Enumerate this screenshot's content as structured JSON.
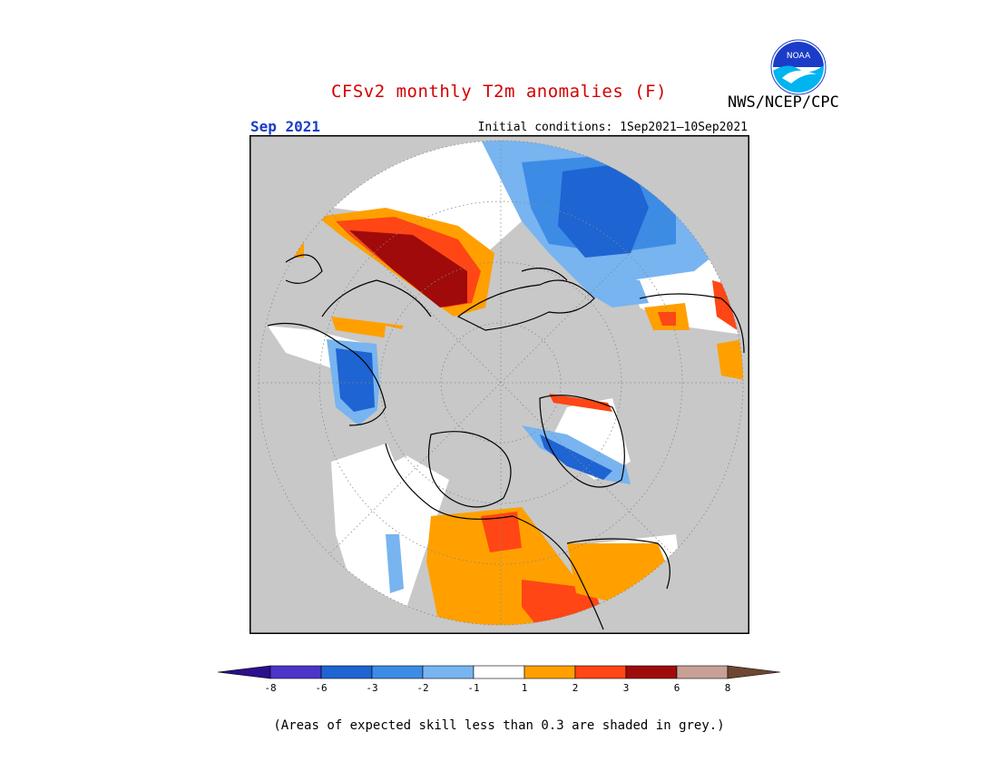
{
  "header": {
    "title": "CFSv2 monthly T2m anomalies (F)",
    "agency": "NWS/NCEP/CPC",
    "logo_text": "NOAA",
    "month": "Sep 2021",
    "initial_conditions": "Initial conditions: 1Sep2021—10Sep2021"
  },
  "map": {
    "projection": "polar-stereographic-north",
    "background_color": "#c8c8c8"
  },
  "legend": {
    "colors": [
      "#2b0f8c",
      "#4a35c8",
      "#1e64d2",
      "#3c8ce6",
      "#78b4f0",
      "#ffffff",
      "#ffa000",
      "#ff4614",
      "#a00a0a",
      "#c8a096",
      "#6e4632"
    ],
    "tick_labels": [
      "-8",
      "-6",
      "-3",
      "-2",
      "-1",
      "1",
      "2",
      "3",
      "6",
      "8"
    ]
  },
  "footnote": "(Areas of expected skill less than 0.3 are shaded in grey.)"
}
